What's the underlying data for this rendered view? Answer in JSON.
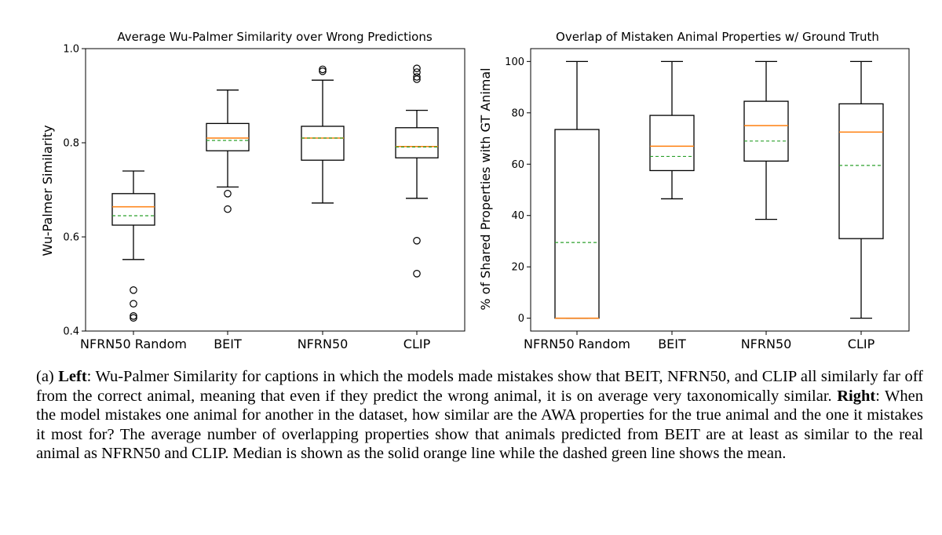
{
  "chart_data": [
    {
      "type": "box",
      "title": "Average Wu-Palmer Similarity over Wrong Predictions",
      "ylabel": "Wu-Palmer Similarity",
      "xlabel": "",
      "ylim": [
        0.4,
        1.0
      ],
      "yticks": [
        "0.4",
        "0.6",
        "0.8",
        "1.0"
      ],
      "categories": [
        "NFRN50 Random",
        "BEIT",
        "NFRN50",
        "CLIP"
      ],
      "boxes": [
        {
          "whislo": 0.552,
          "q1": 0.625,
          "med": 0.664,
          "mean": 0.645,
          "q3": 0.692,
          "whishi": 0.74,
          "fliers": [
            0.487,
            0.458,
            0.432,
            0.428
          ]
        },
        {
          "whislo": 0.706,
          "q1": 0.783,
          "med": 0.81,
          "mean": 0.805,
          "q3": 0.841,
          "whishi": 0.912,
          "fliers": [
            0.692,
            0.659
          ]
        },
        {
          "whislo": 0.672,
          "q1": 0.763,
          "med": 0.81,
          "mean": 0.81,
          "q3": 0.835,
          "whishi": 0.933,
          "fliers": [
            0.956,
            0.952
          ]
        },
        {
          "whislo": 0.682,
          "q1": 0.768,
          "med": 0.792,
          "mean": 0.791,
          "q3": 0.832,
          "whishi": 0.869,
          "fliers": [
            0.958,
            0.95,
            0.94,
            0.935,
            0.592,
            0.522
          ]
        }
      ],
      "median_color": "#ff7f0e",
      "mean_color": "#2ca02c",
      "grid": false
    },
    {
      "type": "box",
      "title": "Overlap of Mistaken Animal Properties w/ Ground Truth",
      "ylabel": "% of Shared Properties with GT Animal",
      "xlabel": "",
      "ylim": [
        -5,
        105
      ],
      "yticks": [
        "0",
        "20",
        "40",
        "60",
        "80",
        "100"
      ],
      "categories": [
        "NFRN50 Random",
        "BEIT",
        "NFRN50",
        "CLIP"
      ],
      "boxes": [
        {
          "whislo": 0,
          "q1": 0,
          "med": 0,
          "mean": 29.5,
          "q3": 73.5,
          "whishi": 100,
          "fliers": []
        },
        {
          "whislo": 46.5,
          "q1": 57.5,
          "med": 67,
          "mean": 63,
          "q3": 79,
          "whishi": 100,
          "fliers": []
        },
        {
          "whislo": 38.5,
          "q1": 61.2,
          "med": 75,
          "mean": 69,
          "q3": 84.5,
          "whishi": 100,
          "fliers": []
        },
        {
          "whislo": 0,
          "q1": 31,
          "med": 72.5,
          "mean": 59.5,
          "q3": 83.5,
          "whishi": 100,
          "fliers": []
        }
      ],
      "median_color": "#ff7f0e",
      "mean_color": "#2ca02c",
      "grid": false
    }
  ],
  "caption": {
    "prefix": "(a) ",
    "left_label": "Left",
    "left_text": ": Wu-Palmer Similarity for captions in which the models made mistakes show that BEIT, NFRN50, and CLIP all similarly far off from the correct animal, meaning that even if they predict the wrong animal, it is on average very taxonomically similar. ",
    "right_label": "Right",
    "right_text": ": When the model mistakes one animal for another in the dataset, how similar are the AWA properties for the true animal and the one it mistakes it most for? The average number of overlapping properties show that animals predicted from BEIT are at least as similar to the real animal as NFRN50 and CLIP. Median is shown as the solid orange line while the dashed green line shows the mean."
  }
}
